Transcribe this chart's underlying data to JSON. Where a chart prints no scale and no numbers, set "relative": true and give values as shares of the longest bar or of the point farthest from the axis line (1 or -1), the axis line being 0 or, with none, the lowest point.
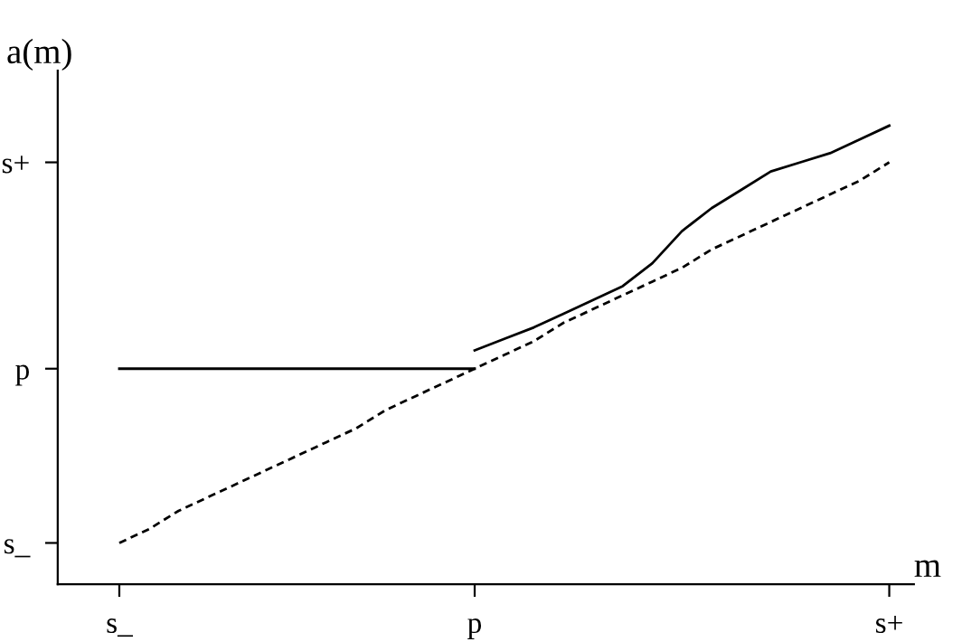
{
  "chart_data": {
    "type": "line",
    "xlabel": "m",
    "ylabel": "a(m)",
    "relative": true,
    "categories": [
      "s_",
      null,
      null,
      null,
      null,
      null,
      null,
      null,
      null,
      null,
      null,
      null,
      "p",
      null,
      null,
      null,
      null,
      null,
      null,
      null,
      null,
      null,
      null,
      null,
      null,
      null,
      "s+"
    ],
    "annotations": [
      "s_",
      "p",
      "s+"
    ],
    "grid": false,
    "legend": false,
    "marker": "none",
    "series": [
      {
        "color": "#000000",
        "line_style": "solid",
        "values": [
          0.47,
          0.47,
          0.47,
          0.47,
          0.47,
          0.47,
          0.47,
          0.47,
          0.47,
          0.47,
          0.47,
          0.47,
          0.47,
          null,
          null,
          null,
          null,
          null,
          null,
          null,
          null,
          null,
          null,
          null,
          null,
          null,
          null
        ]
      },
      {
        "color": "#000000",
        "line_style": "dashed",
        "values": [
          0.09,
          0.12,
          0.16,
          0.19,
          0.22,
          0.25,
          0.28,
          0.31,
          0.34,
          0.38,
          0.41,
          0.44,
          0.47,
          0.5,
          0.53,
          0.57,
          0.6,
          0.63,
          0.66,
          0.69,
          0.73,
          0.76,
          0.79,
          0.82,
          0.85,
          0.88,
          0.92
        ]
      },
      {
        "color": "#000000",
        "line_style": "solid",
        "values": [
          null,
          null,
          null,
          null,
          null,
          null,
          null,
          null,
          null,
          null,
          null,
          null,
          0.51,
          0.535,
          0.56,
          0.59,
          0.62,
          0.65,
          0.7,
          0.77,
          0.82,
          0.86,
          0.9,
          0.92,
          0.94,
          0.97,
          1.0
        ]
      }
    ]
  }
}
